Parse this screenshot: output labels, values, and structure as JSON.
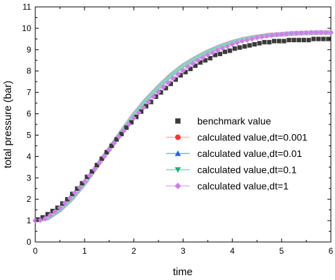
{
  "chart_data": {
    "type": "line",
    "xlabel": "time",
    "ylabel": "total pressure (bar)",
    "xlim": [
      0,
      6
    ],
    "ylim": [
      0,
      11
    ],
    "xticks": [
      "0",
      "1",
      "2",
      "3",
      "4",
      "5",
      "6"
    ],
    "yticks": [
      "0",
      "1",
      "2",
      "3",
      "4",
      "5",
      "6",
      "7",
      "8",
      "9",
      "10",
      "11"
    ],
    "grid": false,
    "legend_position": "center-right",
    "series": [
      {
        "name": "benchmark value",
        "marker": "square",
        "color": "#3a3a3a",
        "line": false,
        "x": [
          0.05,
          0.15,
          0.25,
          0.35,
          0.45,
          0.55,
          0.65,
          0.75,
          0.85,
          0.95,
          1.05,
          1.15,
          1.25,
          1.35,
          1.45,
          1.55,
          1.65,
          1.75,
          1.85,
          1.95,
          2.05,
          2.15,
          2.25,
          2.35,
          2.45,
          2.55,
          2.65,
          2.75,
          2.85,
          2.95,
          3.05,
          3.15,
          3.25,
          3.35,
          3.45,
          3.55,
          3.65,
          3.75,
          3.85,
          3.95,
          4.05,
          4.15,
          4.25,
          4.35,
          4.45,
          4.55,
          4.65,
          4.75,
          4.85,
          4.95,
          5.05,
          5.15,
          5.25,
          5.35,
          5.45,
          5.55,
          5.65,
          5.75,
          5.85,
          5.95
        ],
        "y": [
          1.05,
          1.15,
          1.3,
          1.45,
          1.6,
          1.8,
          2.0,
          2.25,
          2.5,
          2.75,
          3.05,
          3.3,
          3.6,
          3.9,
          4.2,
          4.5,
          4.8,
          5.05,
          5.35,
          5.6,
          5.85,
          6.1,
          6.35,
          6.55,
          6.8,
          7.0,
          7.2,
          7.4,
          7.6,
          7.8,
          7.95,
          8.1,
          8.25,
          8.4,
          8.5,
          8.6,
          8.75,
          8.8,
          8.9,
          8.95,
          9.05,
          9.1,
          9.15,
          9.2,
          9.25,
          9.3,
          9.35,
          9.35,
          9.4,
          9.4,
          9.4,
          9.45,
          9.45,
          9.45,
          9.45,
          9.45,
          9.5,
          9.5,
          9.5,
          9.5
        ]
      },
      {
        "name": "calculated value,dt=0.001",
        "marker": "circle",
        "color": "#ff3333",
        "line_color": "#f4b8b8",
        "x": [
          0,
          0.25,
          0.5,
          0.75,
          1.0,
          1.25,
          1.5,
          1.75,
          2.0,
          2.25,
          2.5,
          2.75,
          3.0,
          3.25,
          3.5,
          3.75,
          4.0,
          4.25,
          4.5,
          4.75,
          5.0,
          5.25,
          5.5,
          5.75,
          6.0
        ],
        "y": [
          1.0,
          1.12,
          1.5,
          2.05,
          2.75,
          3.55,
          4.35,
          5.15,
          5.95,
          6.65,
          7.25,
          7.8,
          8.25,
          8.6,
          8.9,
          9.15,
          9.35,
          9.5,
          9.6,
          9.68,
          9.72,
          9.76,
          9.78,
          9.8,
          9.8
        ]
      },
      {
        "name": "calculated value,dt=0.01",
        "marker": "triangle-up",
        "color": "#2a64d6",
        "line_color": "#7fb2ea",
        "x": [
          0,
          0.25,
          0.5,
          0.75,
          1.0,
          1.25,
          1.5,
          1.75,
          2.0,
          2.25,
          2.5,
          2.75,
          3.0,
          3.25,
          3.5,
          3.75,
          4.0,
          4.25,
          4.5,
          4.75,
          5.0,
          5.25,
          5.5,
          5.75,
          6.0
        ],
        "y": [
          1.0,
          1.12,
          1.5,
          2.05,
          2.75,
          3.55,
          4.35,
          5.15,
          5.95,
          6.65,
          7.25,
          7.8,
          8.25,
          8.6,
          8.9,
          9.15,
          9.35,
          9.5,
          9.6,
          9.68,
          9.72,
          9.76,
          9.78,
          9.8,
          9.8
        ]
      },
      {
        "name": "calculated value,dt=0.1",
        "marker": "triangle-down",
        "color": "#1fae7a",
        "line_color": "#8ad4b6",
        "x": [
          0,
          0.25,
          0.5,
          0.75,
          1.0,
          1.25,
          1.5,
          1.75,
          2.0,
          2.25,
          2.5,
          2.75,
          3.0,
          3.25,
          3.5,
          3.75,
          4.0,
          4.25,
          4.5,
          4.75,
          5.0,
          5.25,
          5.5,
          5.75,
          6.0
        ],
        "y": [
          1.0,
          1.12,
          1.5,
          2.05,
          2.75,
          3.55,
          4.35,
          5.15,
          5.95,
          6.65,
          7.25,
          7.8,
          8.25,
          8.6,
          8.9,
          9.15,
          9.35,
          9.5,
          9.6,
          9.68,
          9.72,
          9.76,
          9.78,
          9.8,
          9.8
        ]
      },
      {
        "name": "calculated value,dt=1",
        "marker": "diamond",
        "color": "#cc80e8",
        "line_color": "#e2b6f2",
        "x": [
          0.0,
          0.1,
          0.2,
          0.3,
          0.4,
          0.5,
          0.6,
          0.7,
          0.8,
          0.9,
          1.0,
          1.1,
          1.2,
          1.3,
          1.4,
          1.5,
          1.6,
          1.7,
          1.8,
          1.9,
          2.0,
          2.1,
          2.2,
          2.3,
          2.4,
          2.5,
          2.6,
          2.7,
          2.8,
          2.9,
          3.0,
          3.1,
          3.2,
          3.3,
          3.4,
          3.5,
          3.6,
          3.7,
          3.8,
          3.9,
          4.0,
          4.1,
          4.2,
          4.3,
          4.4,
          4.5,
          4.6,
          4.7,
          4.8,
          4.9,
          5.0,
          5.1,
          5.2,
          5.3,
          5.4,
          5.5,
          5.6,
          5.7,
          5.8,
          5.9,
          6.0
        ],
        "y": [
          1.0,
          1.02,
          1.1,
          1.25,
          1.42,
          1.6,
          1.82,
          2.05,
          2.3,
          2.55,
          2.83,
          3.1,
          3.4,
          3.7,
          4.0,
          4.3,
          4.62,
          4.92,
          5.2,
          5.5,
          5.8,
          6.05,
          6.3,
          6.55,
          6.8,
          7.02,
          7.25,
          7.45,
          7.65,
          7.85,
          8.02,
          8.2,
          8.35,
          8.5,
          8.62,
          8.75,
          8.85,
          8.97,
          9.07,
          9.15,
          9.25,
          9.32,
          9.4,
          9.45,
          9.5,
          9.56,
          9.6,
          9.64,
          9.67,
          9.7,
          9.72,
          9.74,
          9.76,
          9.77,
          9.78,
          9.79,
          9.8,
          9.8,
          9.8,
          9.8,
          9.8
        ]
      }
    ]
  }
}
